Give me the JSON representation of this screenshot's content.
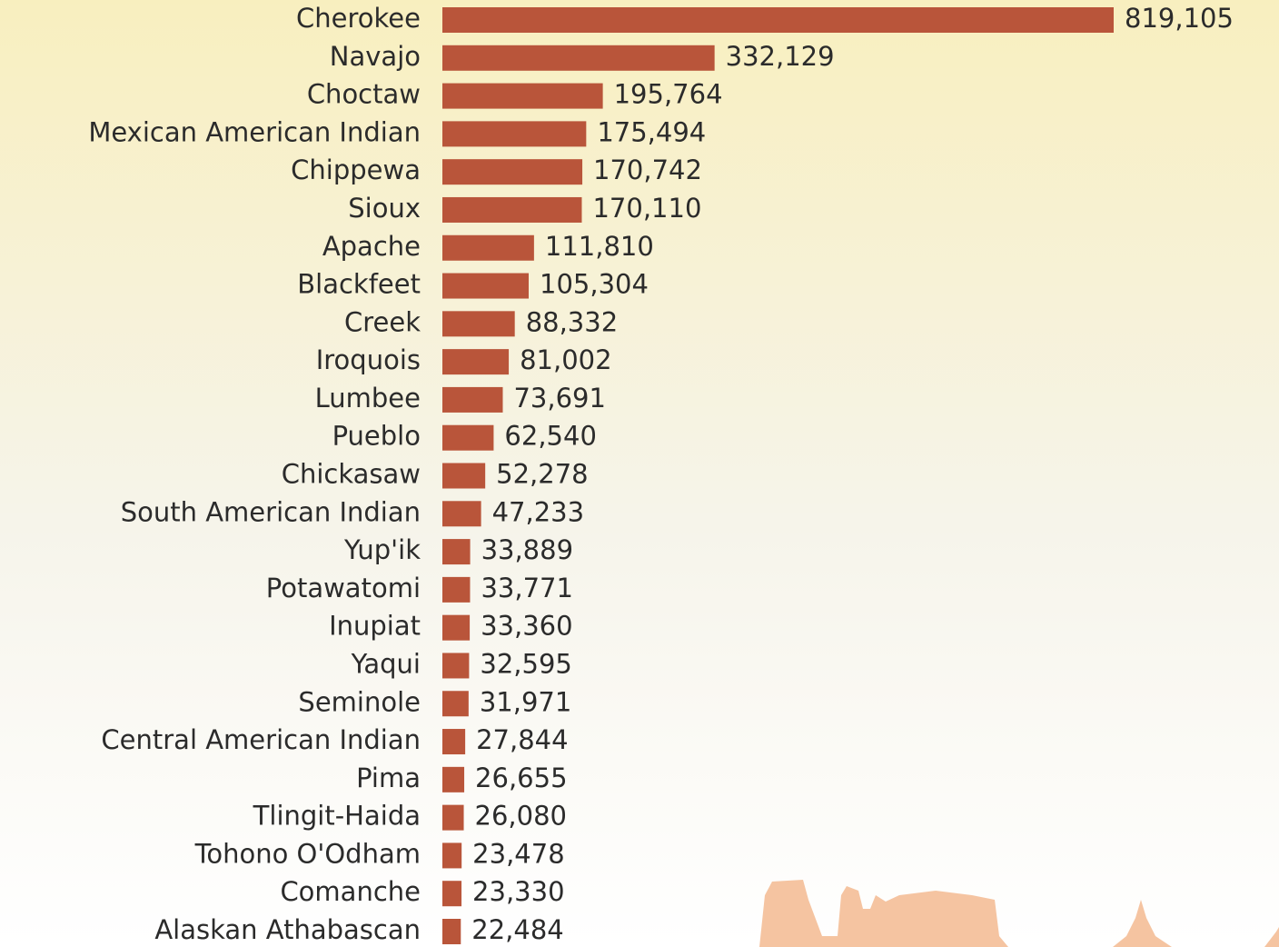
{
  "chart_data": {
    "type": "bar",
    "orientation": "horizontal",
    "color": "#b9553a",
    "categories": [
      "Cherokee",
      "Navajo",
      "Choctaw",
      "Mexican American Indian",
      "Chippewa",
      "Sioux",
      "Apache",
      "Blackfeet",
      "Creek",
      "Iroquois",
      "Lumbee",
      "Pueblo",
      "Chickasaw",
      "South American Indian",
      "Yup'ik",
      "Potawatomi",
      "Inupiat",
      "Yaqui",
      "Seminole",
      "Central American Indian",
      "Pima",
      "Tlingit-Haida",
      "Tohono O'Odham",
      "Comanche",
      "Alaskan Athabascan"
    ],
    "values": [
      819105,
      332129,
      195764,
      175494,
      170742,
      170110,
      111810,
      105304,
      88332,
      81002,
      73691,
      62540,
      52278,
      47233,
      33889,
      33771,
      33360,
      32595,
      31971,
      27844,
      26655,
      26080,
      23478,
      23330,
      22484
    ],
    "value_labels": [
      "819,105",
      "332,129",
      "195,764",
      "175,494",
      "170,742",
      "170,110",
      "111,810",
      "105,304",
      "88,332",
      "81,002",
      "73,691",
      "62,540",
      "52,278",
      "47,233",
      "33,889",
      "33,771",
      "33,360",
      "32,595",
      "31,971",
      "27,844",
      "26,655",
      "26,080",
      "23,478",
      "23,330",
      "22,484"
    ]
  }
}
